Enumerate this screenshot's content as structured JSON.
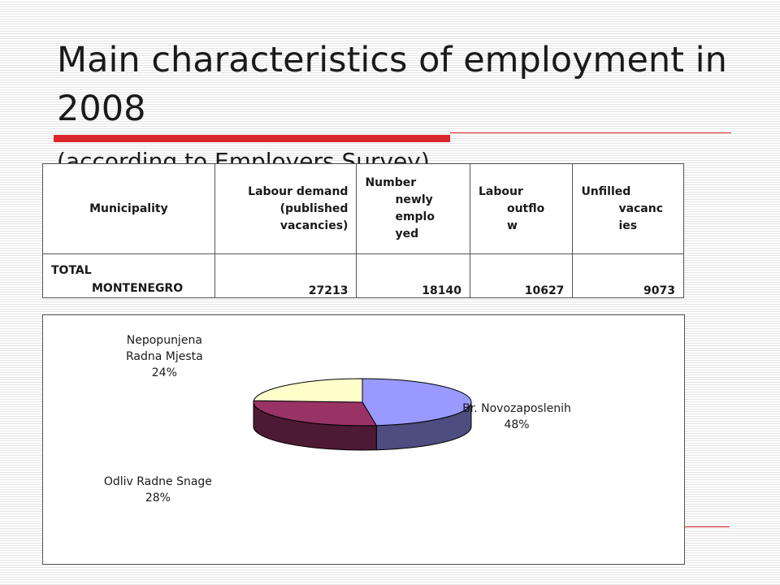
{
  "slide": {
    "title_main": "Main characteristics of employment in 2008",
    "title_sub": "(according to Employers Survey)"
  },
  "table": {
    "headers": [
      [
        "Municipality"
      ],
      [
        "Labour demand",
        "(published",
        "vacancies)"
      ],
      [
        "Number",
        "newly",
        "emplo",
        "yed"
      ],
      [
        "Labour",
        "outflo",
        "w"
      ],
      [
        "Unfilled",
        "vacanc",
        "ies"
      ]
    ],
    "row": {
      "municipality": [
        "TOTAL",
        "MONTENEGRO"
      ],
      "values": [
        "27213",
        "18140",
        "10627",
        "9073"
      ]
    }
  },
  "chart_data": {
    "type": "pie",
    "three_d": true,
    "slices": [
      {
        "label": [
          "Br. Novozaposlenih"
        ],
        "percent_label": "48%",
        "value": 18140,
        "color": "#9999ff"
      },
      {
        "label": [
          "Odliv Radne Snage"
        ],
        "percent_label": "28%",
        "value": 10627,
        "color": "#993366"
      },
      {
        "label": [
          "Nepopunjena",
          "Radna Mjesta"
        ],
        "percent_label": "24%",
        "value": 9073,
        "color": "#ffffcc"
      }
    ]
  }
}
